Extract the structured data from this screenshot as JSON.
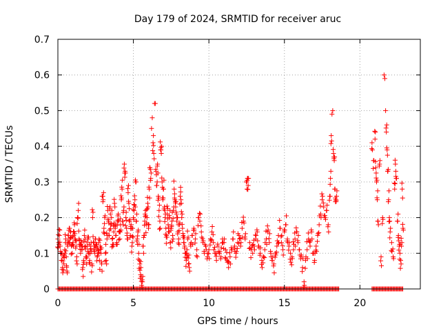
{
  "chart_data": {
    "type": "scatter",
    "title": "Day 179 of 2024, SRMTID for receiver aruc",
    "xlabel": "GPS time / hours",
    "ylabel": "SRMTID / TECUs",
    "xlim": [
      0,
      24
    ],
    "ylim": [
      0,
      0.7
    ],
    "xticks": [
      0,
      5,
      10,
      15,
      20
    ],
    "yticks": [
      0,
      0.1,
      0.2,
      0.3,
      0.4,
      0.5,
      0.6,
      0.7
    ],
    "ytick_labels": [
      "0",
      "0.1",
      "0.2",
      "0.3",
      "0.4",
      "0.5",
      "0.6",
      "0.7"
    ],
    "grid": true,
    "marker": "+",
    "color": "#ff0000",
    "series": [
      {
        "name": "SRMTID",
        "points": [
          [
            0.0,
            0.14
          ],
          [
            0.05,
            0.13
          ],
          [
            0.1,
            0.15
          ],
          [
            0.15,
            0.12
          ],
          [
            0.2,
            0.1
          ],
          [
            0.25,
            0.08
          ],
          [
            0.3,
            0.06
          ],
          [
            0.35,
            0.09
          ],
          [
            0.4,
            0.07
          ],
          [
            0.45,
            0.11
          ],
          [
            0.5,
            0.13
          ],
          [
            0.55,
            0.09
          ],
          [
            0.6,
            0.05
          ],
          [
            0.65,
            0.12
          ],
          [
            0.7,
            0.15
          ],
          [
            0.75,
            0.17
          ],
          [
            0.8,
            0.14
          ],
          [
            0.85,
            0.16
          ],
          [
            0.9,
            0.12
          ],
          [
            0.95,
            0.1
          ],
          [
            1.0,
            0.13
          ],
          [
            1.05,
            0.15
          ],
          [
            1.1,
            0.18
          ],
          [
            1.15,
            0.14
          ],
          [
            1.2,
            0.12
          ],
          [
            1.25,
            0.09
          ],
          [
            1.3,
            0.2
          ],
          [
            1.35,
            0.22
          ],
          [
            1.4,
            0.14
          ],
          [
            1.45,
            0.12
          ],
          [
            1.5,
            0.1
          ],
          [
            1.55,
            0.13
          ],
          [
            1.6,
            0.11
          ],
          [
            1.65,
            0.06
          ],
          [
            1.7,
            0.08
          ],
          [
            1.75,
            0.15
          ],
          [
            1.8,
            0.14
          ],
          [
            1.85,
            0.09
          ],
          [
            1.9,
            0.07
          ],
          [
            1.95,
            0.12
          ],
          [
            2.0,
            0.14
          ],
          [
            2.05,
            0.1
          ],
          [
            2.1,
            0.08
          ],
          [
            2.15,
            0.11
          ],
          [
            2.2,
            0.13
          ],
          [
            2.25,
            0.07
          ],
          [
            2.3,
            0.2
          ],
          [
            2.35,
            0.13
          ],
          [
            2.4,
            0.12
          ],
          [
            2.45,
            0.1
          ],
          [
            2.5,
            0.14
          ],
          [
            2.55,
            0.12
          ],
          [
            2.6,
            0.09
          ],
          [
            2.65,
            0.11
          ],
          [
            2.7,
            0.13
          ],
          [
            2.75,
            0.08
          ],
          [
            2.8,
            0.12
          ],
          [
            2.85,
            0.1
          ],
          [
            2.9,
            0.07
          ],
          [
            2.95,
            0.26
          ],
          [
            3.0,
            0.25
          ],
          [
            3.05,
            0.17
          ],
          [
            3.1,
            0.2
          ],
          [
            3.15,
            0.1
          ],
          [
            3.2,
            0.08
          ],
          [
            3.25,
            0.14
          ],
          [
            3.3,
            0.22
          ],
          [
            3.35,
            0.19
          ],
          [
            3.4,
            0.15
          ],
          [
            3.45,
            0.23
          ],
          [
            3.5,
            0.18
          ],
          [
            3.55,
            0.2
          ],
          [
            3.6,
            0.14
          ],
          [
            3.65,
            0.12
          ],
          [
            3.7,
            0.16
          ],
          [
            3.75,
            0.24
          ],
          [
            3.8,
            0.17
          ],
          [
            3.85,
            0.15
          ],
          [
            3.9,
            0.13
          ],
          [
            3.95,
            0.19
          ],
          [
            4.0,
            0.21
          ],
          [
            4.05,
            0.16
          ],
          [
            4.1,
            0.14
          ],
          [
            4.15,
            0.18
          ],
          [
            4.2,
            0.25
          ],
          [
            4.25,
            0.28
          ],
          [
            4.3,
            0.19
          ],
          [
            4.35,
            0.22
          ],
          [
            4.4,
            0.35
          ],
          [
            4.45,
            0.33
          ],
          [
            4.5,
            0.2
          ],
          [
            4.55,
            0.17
          ],
          [
            4.6,
            0.14
          ],
          [
            4.65,
            0.27
          ],
          [
            4.7,
            0.24
          ],
          [
            4.75,
            0.19
          ],
          [
            4.8,
            0.15
          ],
          [
            4.85,
            0.18
          ],
          [
            4.9,
            0.12
          ],
          [
            4.95,
            0.17
          ],
          [
            5.0,
            0.2
          ],
          [
            5.05,
            0.22
          ],
          [
            5.1,
            0.25
          ],
          [
            5.15,
            0.3
          ],
          [
            5.2,
            0.19
          ],
          [
            5.25,
            0.14
          ],
          [
            5.3,
            0.16
          ],
          [
            5.35,
            0.1
          ],
          [
            5.4,
            0.08
          ],
          [
            5.45,
            0.03
          ],
          [
            5.5,
            0.06
          ],
          [
            5.55,
            0.01
          ],
          [
            5.6,
            0.02
          ],
          [
            5.65,
            0.12
          ],
          [
            5.7,
            0.15
          ],
          [
            5.75,
            0.19
          ],
          [
            5.8,
            0.22
          ],
          [
            5.85,
            0.18
          ],
          [
            5.9,
            0.2
          ],
          [
            5.95,
            0.24
          ],
          [
            6.0,
            0.17
          ],
          [
            6.05,
            0.28
          ],
          [
            6.1,
            0.34
          ],
          [
            6.15,
            0.31
          ],
          [
            6.2,
            0.45
          ],
          [
            6.25,
            0.48
          ],
          [
            6.3,
            0.41
          ],
          [
            6.35,
            0.38
          ],
          [
            6.4,
            0.52
          ],
          [
            6.45,
            0.52
          ],
          [
            6.5,
            0.33
          ],
          [
            6.55,
            0.29
          ],
          [
            6.6,
            0.35
          ],
          [
            6.65,
            0.26
          ],
          [
            6.7,
            0.22
          ],
          [
            6.75,
            0.19
          ],
          [
            6.8,
            0.39
          ],
          [
            6.85,
            0.38
          ],
          [
            6.9,
            0.3
          ],
          [
            6.95,
            0.25
          ],
          [
            7.0,
            0.28
          ],
          [
            7.05,
            0.23
          ],
          [
            7.1,
            0.2
          ],
          [
            7.15,
            0.17
          ],
          [
            7.2,
            0.15
          ],
          [
            7.25,
            0.21
          ],
          [
            7.3,
            0.18
          ],
          [
            7.35,
            0.16
          ],
          [
            7.4,
            0.2
          ],
          [
            7.45,
            0.13
          ],
          [
            7.5,
            0.17
          ],
          [
            7.55,
            0.19
          ],
          [
            7.6,
            0.15
          ],
          [
            7.65,
            0.22
          ],
          [
            7.7,
            0.28
          ],
          [
            7.75,
            0.25
          ],
          [
            7.8,
            0.23
          ],
          [
            7.85,
            0.21
          ],
          [
            7.9,
            0.2
          ],
          [
            7.95,
            0.16
          ],
          [
            8.0,
            0.14
          ],
          [
            8.05,
            0.18
          ],
          [
            8.1,
            0.26
          ],
          [
            8.15,
            0.25
          ],
          [
            8.2,
            0.2
          ],
          [
            8.25,
            0.17
          ],
          [
            8.3,
            0.15
          ],
          [
            8.35,
            0.13
          ],
          [
            8.4,
            0.12
          ],
          [
            8.45,
            0.1
          ],
          [
            8.5,
            0.08
          ],
          [
            8.55,
            0.11
          ],
          [
            8.6,
            0.14
          ],
          [
            8.65,
            0.07
          ],
          [
            8.7,
            0.06
          ],
          [
            8.8,
            0.12
          ],
          [
            8.9,
            0.15
          ],
          [
            9.0,
            0.17
          ],
          [
            9.1,
            0.14
          ],
          [
            9.2,
            0.11
          ],
          [
            9.3,
            0.2
          ],
          [
            9.4,
            0.19
          ],
          [
            9.5,
            0.16
          ],
          [
            9.6,
            0.13
          ],
          [
            9.7,
            0.1
          ],
          [
            9.8,
            0.12
          ],
          [
            9.9,
            0.09
          ],
          [
            10.0,
            0.11
          ],
          [
            10.1,
            0.14
          ],
          [
            10.2,
            0.16
          ],
          [
            10.3,
            0.13
          ],
          [
            10.4,
            0.1
          ],
          [
            10.5,
            0.08
          ],
          [
            10.6,
            0.12
          ],
          [
            10.7,
            0.1
          ],
          [
            10.8,
            0.09
          ],
          [
            10.9,
            0.14
          ],
          [
            11.0,
            0.13
          ],
          [
            11.1,
            0.11
          ],
          [
            11.2,
            0.08
          ],
          [
            11.3,
            0.06
          ],
          [
            11.4,
            0.09
          ],
          [
            11.5,
            0.11
          ],
          [
            11.6,
            0.14
          ],
          [
            11.7,
            0.12
          ],
          [
            11.8,
            0.1
          ],
          [
            11.9,
            0.13
          ],
          [
            12.0,
            0.15
          ],
          [
            12.1,
            0.12
          ],
          [
            12.2,
            0.17
          ],
          [
            12.3,
            0.19
          ],
          [
            12.4,
            0.14
          ],
          [
            12.5,
            0.3
          ],
          [
            12.55,
            0.31
          ],
          [
            12.6,
            0.29
          ],
          [
            12.7,
            0.13
          ],
          [
            12.8,
            0.11
          ],
          [
            12.9,
            0.1
          ],
          [
            13.0,
            0.12
          ],
          [
            13.1,
            0.14
          ],
          [
            13.2,
            0.16
          ],
          [
            13.3,
            0.12
          ],
          [
            13.4,
            0.1
          ],
          [
            13.5,
            0.08
          ],
          [
            13.6,
            0.09
          ],
          [
            13.7,
            0.11
          ],
          [
            13.8,
            0.14
          ],
          [
            13.9,
            0.16
          ],
          [
            14.0,
            0.13
          ],
          [
            14.1,
            0.1
          ],
          [
            14.2,
            0.08
          ],
          [
            14.3,
            0.07
          ],
          [
            14.4,
            0.1
          ],
          [
            14.5,
            0.12
          ],
          [
            14.6,
            0.15
          ],
          [
            14.7,
            0.17
          ],
          [
            14.8,
            0.13
          ],
          [
            14.9,
            0.11
          ],
          [
            15.0,
            0.16
          ],
          [
            15.1,
            0.18
          ],
          [
            15.2,
            0.14
          ],
          [
            15.3,
            0.12
          ],
          [
            15.4,
            0.1
          ],
          [
            15.5,
            0.09
          ],
          [
            15.6,
            0.11
          ],
          [
            15.7,
            0.14
          ],
          [
            15.8,
            0.16
          ],
          [
            15.9,
            0.13
          ],
          [
            16.0,
            0.11
          ],
          [
            16.1,
            0.09
          ],
          [
            16.2,
            0.06
          ],
          [
            16.3,
            0.02
          ],
          [
            16.4,
            0.08
          ],
          [
            16.5,
            0.11
          ],
          [
            16.6,
            0.14
          ],
          [
            16.7,
            0.12
          ],
          [
            16.8,
            0.16
          ],
          [
            16.9,
            0.1
          ],
          [
            17.0,
            0.08
          ],
          [
            17.1,
            0.12
          ],
          [
            17.2,
            0.15
          ],
          [
            17.3,
            0.18
          ],
          [
            17.4,
            0.21
          ],
          [
            17.5,
            0.25
          ],
          [
            17.6,
            0.23
          ],
          [
            17.7,
            0.2
          ],
          [
            17.8,
            0.22
          ],
          [
            17.9,
            0.18
          ],
          [
            18.0,
            0.26
          ],
          [
            18.05,
            0.31
          ],
          [
            18.1,
            0.43
          ],
          [
            18.15,
            0.49
          ],
          [
            18.2,
            0.5
          ],
          [
            18.25,
            0.38
          ],
          [
            18.3,
            0.36
          ],
          [
            18.35,
            0.28
          ],
          [
            18.4,
            0.25
          ],
          [
            18.45,
            0.26
          ],
          [
            20.8,
            0.41
          ],
          [
            20.9,
            0.36
          ],
          [
            21.0,
            0.42
          ],
          [
            21.05,
            0.34
          ],
          [
            21.1,
            0.3
          ],
          [
            21.15,
            0.25
          ],
          [
            21.2,
            0.19
          ],
          [
            21.3,
            0.35
          ],
          [
            21.4,
            0.09
          ],
          [
            21.5,
            0.2
          ],
          [
            21.6,
            0.6
          ],
          [
            21.65,
            0.59
          ],
          [
            21.7,
            0.5
          ],
          [
            21.75,
            0.44
          ],
          [
            21.8,
            0.39
          ],
          [
            21.85,
            0.33
          ],
          [
            21.9,
            0.25
          ],
          [
            21.95,
            0.2
          ],
          [
            22.0,
            0.16
          ],
          [
            22.1,
            0.13
          ],
          [
            22.2,
            0.09
          ],
          [
            22.3,
            0.28
          ],
          [
            22.35,
            0.35
          ],
          [
            22.4,
            0.31
          ],
          [
            22.5,
            0.19
          ],
          [
            22.55,
            0.15
          ],
          [
            22.6,
            0.12
          ],
          [
            22.65,
            0.1
          ],
          [
            22.7,
            0.08
          ],
          [
            22.75,
            0.12
          ],
          [
            22.8,
            0.28
          ],
          [
            22.85,
            0.17
          ]
        ],
        "zero_segments": [
          [
            0.0,
            18.6
          ],
          [
            20.8,
            22.85
          ]
        ]
      }
    ]
  }
}
